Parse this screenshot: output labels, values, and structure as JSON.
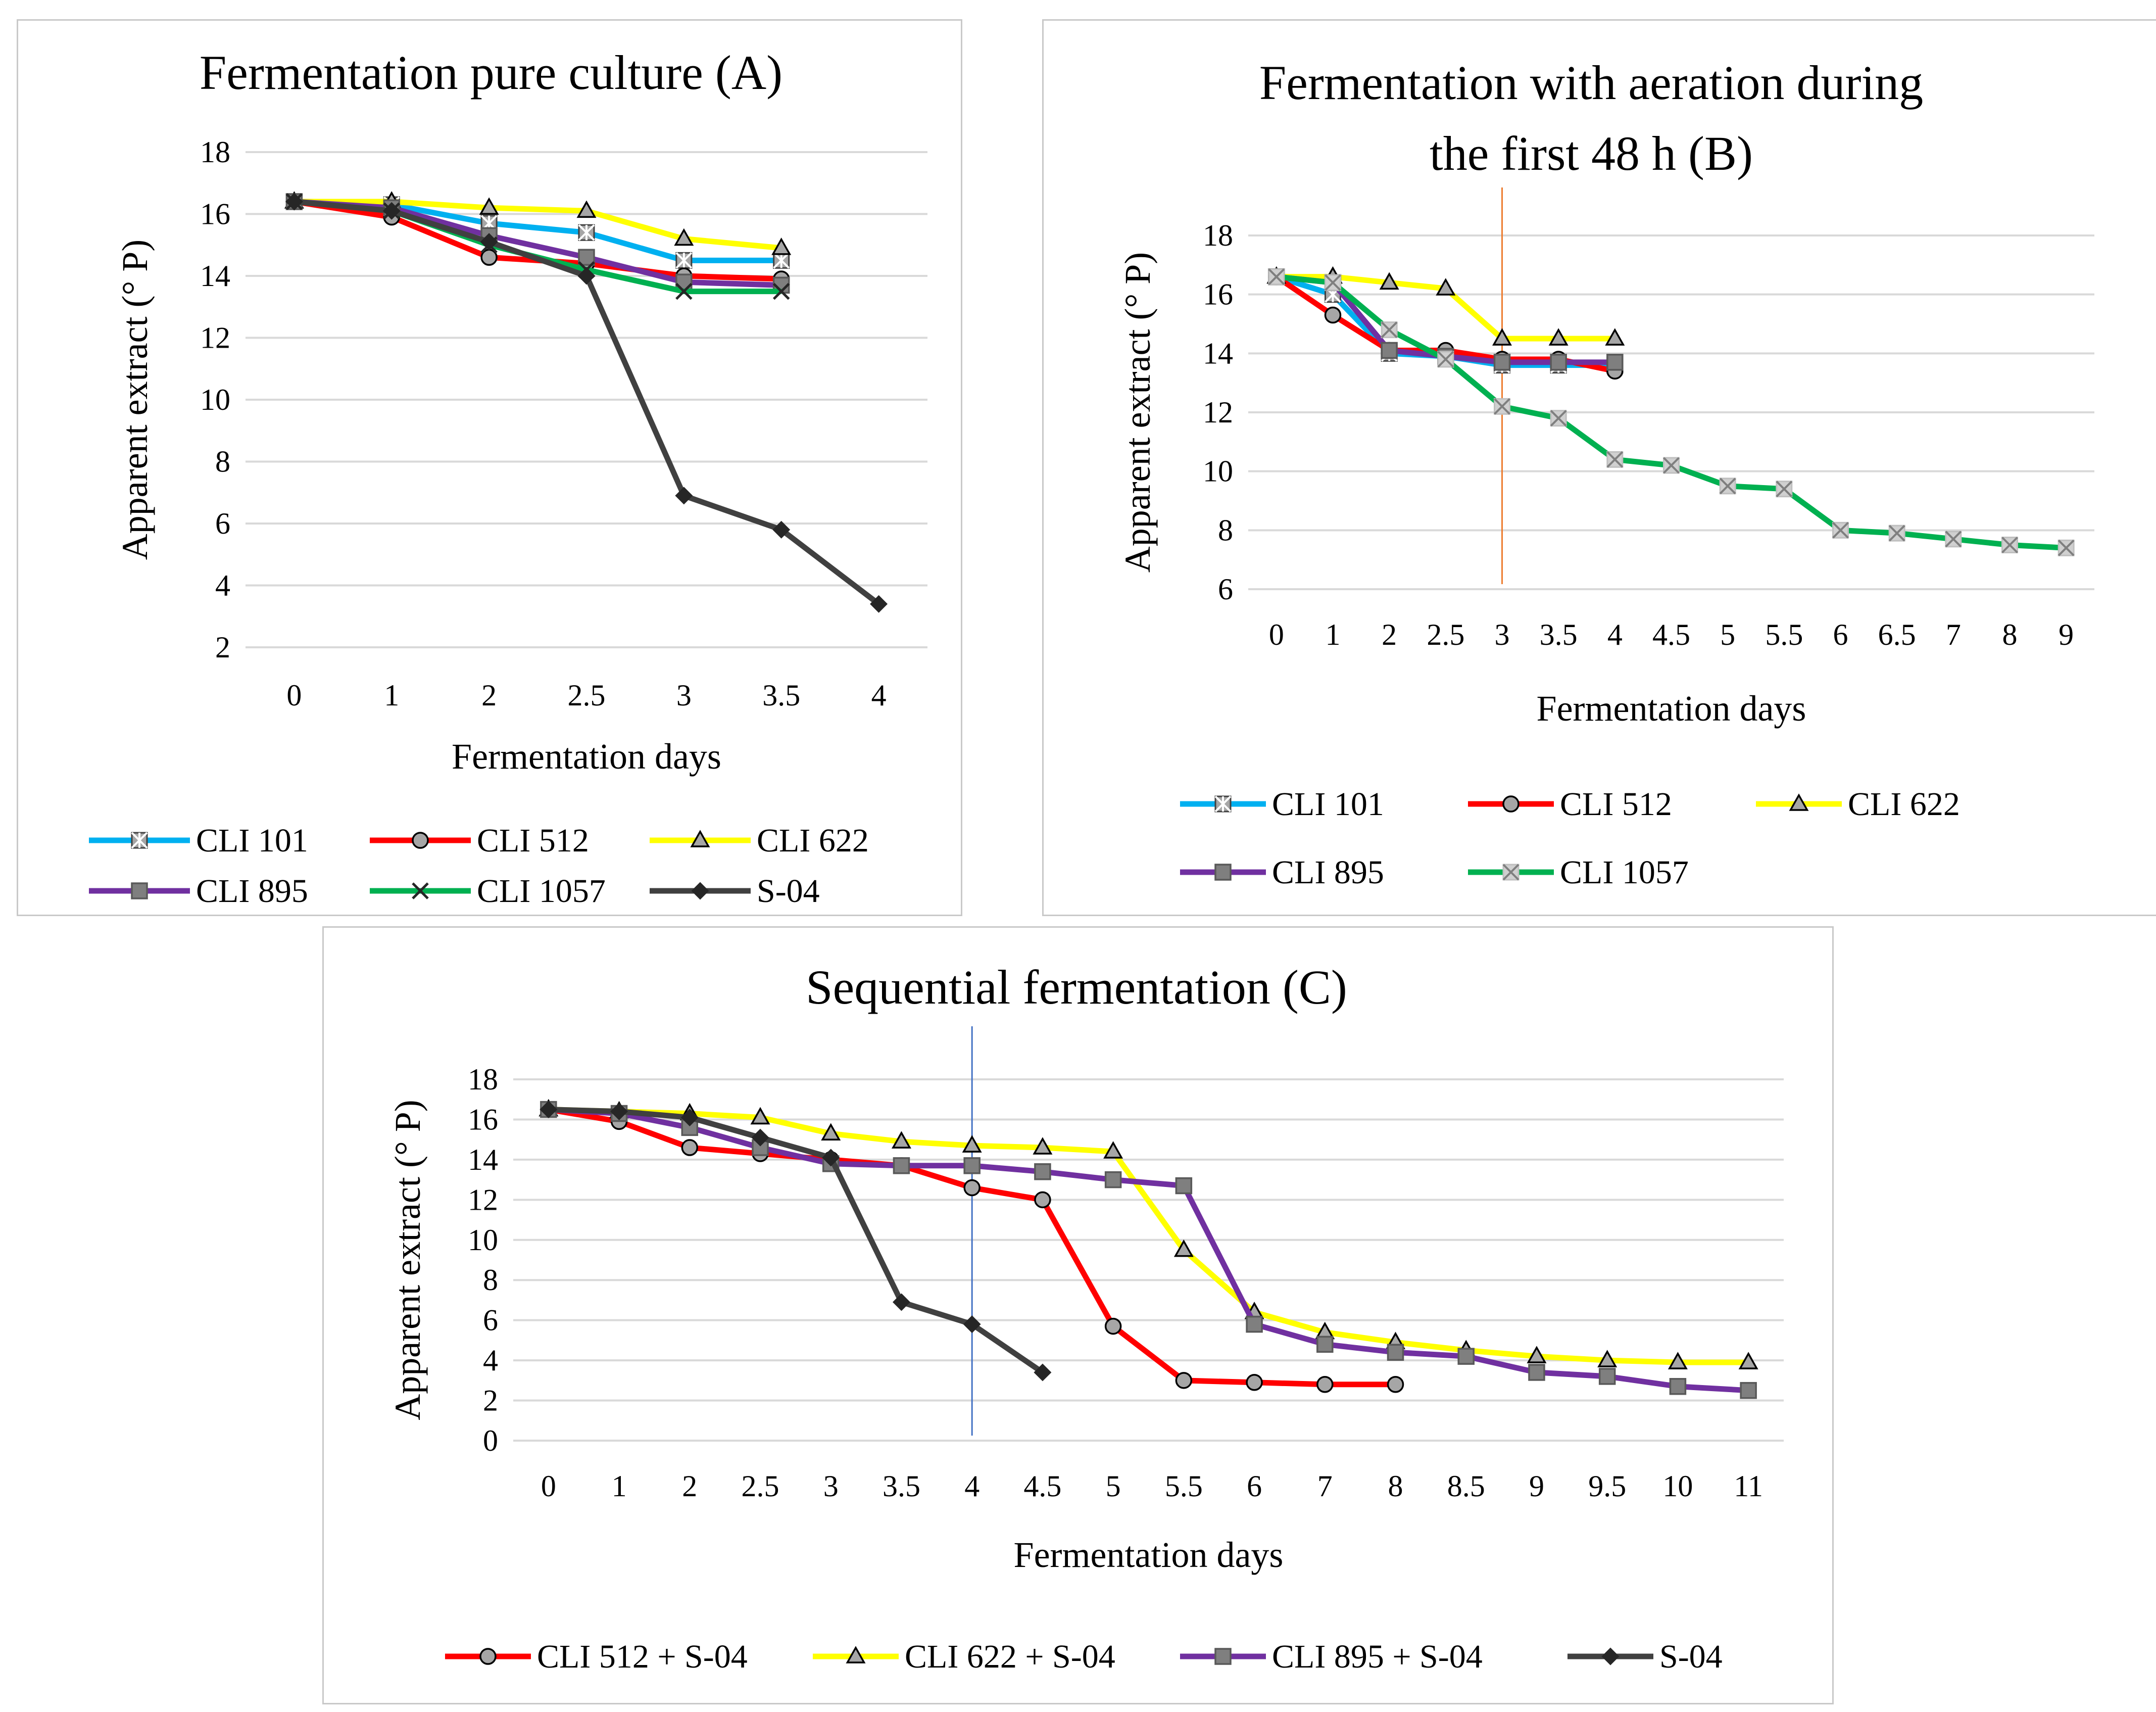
{
  "chart_data": [
    {
      "type": "line",
      "title": "Fermentation pure culture (A)",
      "xlabel": "Fermentation days",
      "ylabel": "Apparent extract (° P)",
      "categories": [
        "0",
        "1",
        "2",
        "2.5",
        "3",
        "3.5",
        "4"
      ],
      "ylim": [
        2,
        18
      ],
      "yticks": [
        "2",
        "4",
        "6",
        "8",
        "10",
        "12",
        "14",
        "16",
        "18"
      ],
      "grid": true,
      "legend_position": "bottom",
      "series": [
        {
          "name": "CLI 101",
          "values": [
            16.4,
            16.3,
            15.7,
            15.4,
            14.5,
            14.5,
            null
          ],
          "color": "#00b0f0",
          "marker": "asterisk-square"
        },
        {
          "name": "CLI 512",
          "values": [
            16.4,
            15.9,
            14.6,
            14.4,
            14.0,
            13.9,
            null
          ],
          "color": "#ff0000",
          "marker": "circle"
        },
        {
          "name": "CLI 622",
          "values": [
            16.4,
            16.4,
            16.2,
            16.1,
            15.2,
            14.9,
            null
          ],
          "color": "#ffff00",
          "marker": "triangle"
        },
        {
          "name": "CLI 895",
          "values": [
            16.4,
            16.2,
            15.3,
            14.6,
            13.8,
            13.7,
            null
          ],
          "color": "#7030a0",
          "marker": "square"
        },
        {
          "name": "CLI 1057",
          "values": [
            16.4,
            16.1,
            15.0,
            14.2,
            13.5,
            13.5,
            null
          ],
          "color": "#00b050",
          "marker": "x"
        },
        {
          "name": "S-04",
          "values": [
            16.4,
            16.1,
            15.1,
            14.0,
            6.9,
            5.8,
            3.4
          ],
          "color": "#404040",
          "marker": "diamond"
        }
      ]
    },
    {
      "type": "line",
      "title": "Fermentation with aeration during the first 48 h  (B)",
      "title_lines": [
        "Fermentation with aeration during",
        "the first 48 h  (B)"
      ],
      "xlabel": "Fermentation days",
      "ylabel": "Apparent extract (° P)",
      "categories": [
        "0",
        "1",
        "2",
        "2.5",
        "3",
        "3.5",
        "4",
        "4.5",
        "5",
        "5.5",
        "6",
        "6.5",
        "7",
        "8",
        "9"
      ],
      "ylim": [
        6,
        18
      ],
      "yticks": [
        "6",
        "8",
        "10",
        "12",
        "14",
        "16",
        "18"
      ],
      "grid": true,
      "vertical_marker": "3",
      "legend_position": "bottom",
      "series": [
        {
          "name": "CLI 101",
          "values": [
            16.6,
            16.0,
            14.0,
            13.9,
            13.6,
            13.6,
            13.6,
            null,
            null,
            null,
            null,
            null,
            null,
            null,
            null
          ],
          "color": "#00b0f0",
          "marker": "asterisk-square"
        },
        {
          "name": "CLI 512",
          "values": [
            16.6,
            15.3,
            14.1,
            14.1,
            13.8,
            13.8,
            13.4,
            null,
            null,
            null,
            null,
            null,
            null,
            null,
            null
          ],
          "color": "#ff0000",
          "marker": "circle"
        },
        {
          "name": "CLI 622",
          "values": [
            16.6,
            16.6,
            16.4,
            16.2,
            14.5,
            14.5,
            14.5,
            null,
            null,
            null,
            null,
            null,
            null,
            null,
            null
          ],
          "color": "#ffff00",
          "marker": "triangle"
        },
        {
          "name": "CLI 895",
          "values": [
            16.6,
            16.4,
            14.1,
            13.9,
            13.7,
            13.7,
            13.7,
            null,
            null,
            null,
            null,
            null,
            null,
            null,
            null
          ],
          "color": "#7030a0",
          "marker": "square"
        },
        {
          "name": "CLI 1057",
          "values": [
            16.6,
            16.4,
            14.8,
            13.8,
            12.2,
            11.8,
            10.4,
            10.2,
            9.5,
            9.4,
            8.0,
            7.9,
            7.7,
            7.5,
            7.4
          ],
          "color": "#00b050",
          "marker": "x-square"
        }
      ]
    },
    {
      "type": "line",
      "title": "Sequential fermentation (C)",
      "xlabel": "Fermentation days",
      "ylabel": "Apparent extract (° P)",
      "categories": [
        "0",
        "1",
        "2",
        "2.5",
        "3",
        "3.5",
        "4",
        "4.5",
        "5",
        "5.5",
        "6",
        "7",
        "8",
        "8.5",
        "9",
        "9.5",
        "10",
        "11"
      ],
      "ylim": [
        0,
        18
      ],
      "yticks": [
        "0",
        "2",
        "4",
        "6",
        "8",
        "10",
        "12",
        "14",
        "16",
        "18"
      ],
      "grid": true,
      "vertical_marker": "4",
      "legend_position": "bottom",
      "series": [
        {
          "name": "CLI 512 + S-04",
          "values": [
            16.5,
            15.9,
            14.6,
            14.3,
            14.0,
            13.7,
            12.6,
            12.0,
            5.7,
            3.0,
            2.9,
            2.8,
            2.8,
            null,
            null,
            null,
            null,
            null
          ],
          "color": "#ff0000",
          "marker": "circle"
        },
        {
          "name": "CLI 622 + S-04",
          "values": [
            16.5,
            16.4,
            16.3,
            16.1,
            15.3,
            14.9,
            14.7,
            14.6,
            14.4,
            9.5,
            6.4,
            5.4,
            4.9,
            4.5,
            4.2,
            4.0,
            3.9,
            3.9
          ],
          "color": "#ffff00",
          "marker": "triangle"
        },
        {
          "name": "CLI 895 + S-04",
          "values": [
            16.5,
            16.3,
            15.6,
            14.6,
            13.8,
            13.7,
            13.7,
            13.4,
            13.0,
            12.7,
            5.8,
            4.8,
            4.4,
            4.2,
            3.4,
            3.2,
            2.7,
            2.5
          ],
          "color": "#7030a0",
          "marker": "square"
        },
        {
          "name": "S-04",
          "values": [
            16.5,
            16.4,
            16.1,
            15.1,
            14.1,
            6.9,
            5.8,
            3.4,
            null,
            null,
            null,
            null,
            null,
            null,
            null,
            null,
            null,
            null
          ],
          "color": "#404040",
          "marker": "diamond"
        }
      ]
    }
  ]
}
